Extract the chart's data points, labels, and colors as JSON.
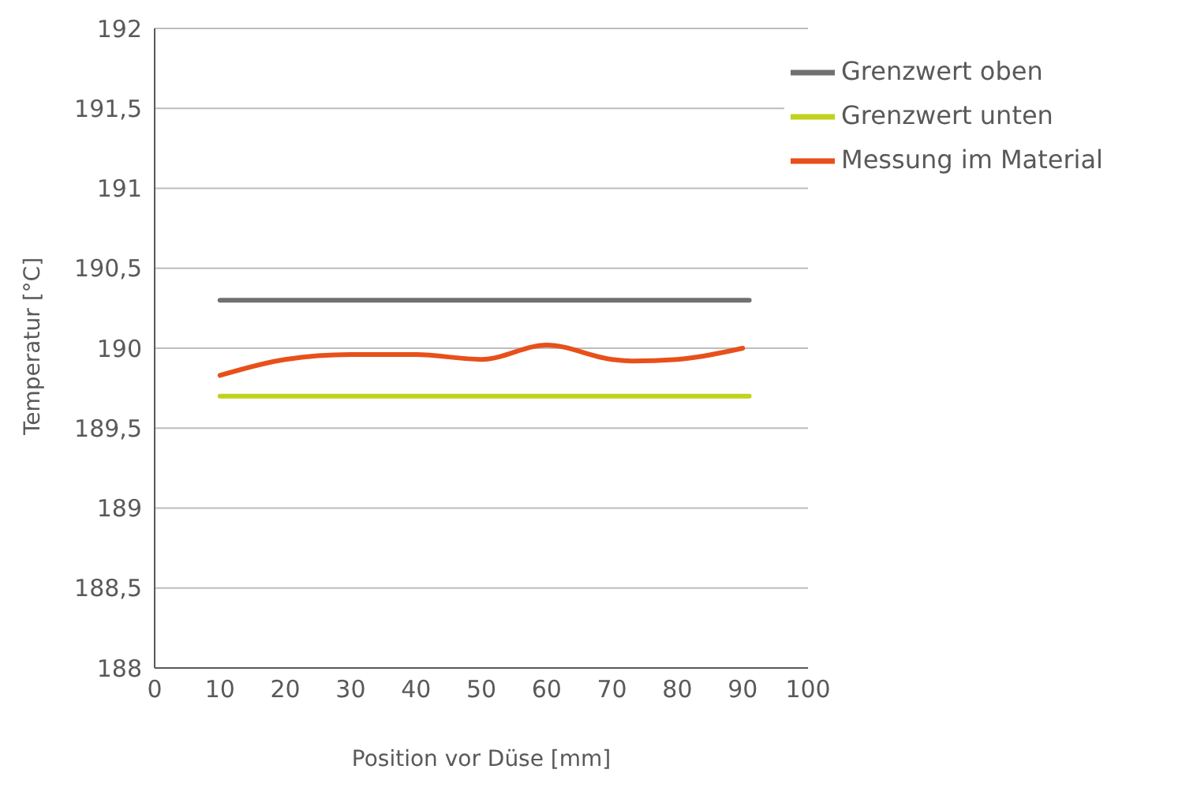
{
  "chart_data": {
    "type": "line",
    "xlabel": "Position vor Düse [mm]",
    "ylabel": "Temperatur [°C]",
    "xlim": [
      0,
      100
    ],
    "xticks": [
      0,
      10,
      20,
      30,
      40,
      50,
      60,
      70,
      80,
      90,
      100
    ],
    "ylim": [
      188,
      192
    ],
    "yticks": [
      188,
      {
        "value": 188.5,
        "label": "188,5"
      },
      189,
      {
        "value": 189.5,
        "label": "189,5"
      },
      190,
      {
        "value": 190.5,
        "label": "190,5"
      },
      191,
      {
        "value": 191.5,
        "label": "191,5"
      },
      192
    ],
    "grid": "y",
    "legend": "top right",
    "marker": "none",
    "line_style": "solid",
    "series": [
      {
        "name": "Messung im Material",
        "color": "#e8501a",
        "x": [
          10,
          20,
          30,
          40,
          50,
          60,
          70,
          73,
          80,
          90
        ],
        "values": [
          189.83,
          189.93,
          189.96,
          189.96,
          189.93,
          190.02,
          189.93,
          189.92,
          189.93,
          190.0
        ]
      },
      {
        "name": "Grenzwert unten",
        "color": "#c0d21e",
        "x": [
          10,
          91
        ],
        "values": [
          189.7,
          189.7
        ]
      },
      {
        "name": "Grenzwert oben",
        "color": "#707070",
        "x": [
          10,
          91
        ],
        "values": [
          190.3,
          190.3
        ]
      }
    ]
  }
}
